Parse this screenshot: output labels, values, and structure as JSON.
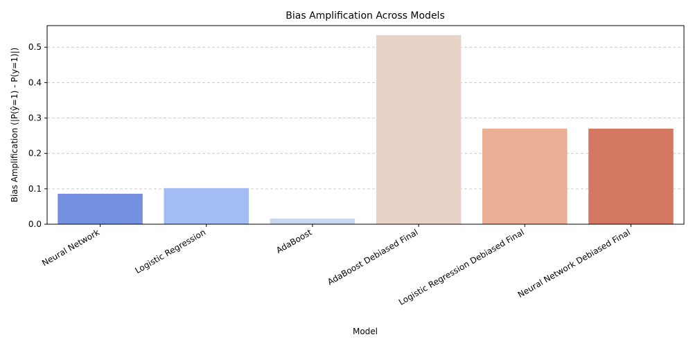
{
  "chart_data": {
    "type": "bar",
    "title": "Bias Amplification Across Models",
    "xlabel": "Model",
    "ylabel": "Bias Amplification (|P(ŷ=1) - P(y=1)|)",
    "categories": [
      "Neural Network",
      "Logistic Regression",
      "AdaBoost",
      "AdaBoost Debiased Final",
      "Logistic Regression Debiased Final",
      "Neural Network Debiased Final"
    ],
    "values": [
      0.086,
      0.102,
      0.016,
      0.534,
      0.27,
      0.27
    ],
    "colors": [
      "#7590e0",
      "#a3bdf4",
      "#c9d8ec",
      "#e8d3c8",
      "#eaaf95",
      "#d47763"
    ],
    "yticks": [
      0.0,
      0.1,
      0.2,
      0.3,
      0.4,
      0.5
    ],
    "ytick_labels": [
      "0.0",
      "0.1",
      "0.2",
      "0.3",
      "0.4",
      "0.5"
    ],
    "ylim": [
      0,
      0.561
    ],
    "grid": "y-dashed"
  }
}
